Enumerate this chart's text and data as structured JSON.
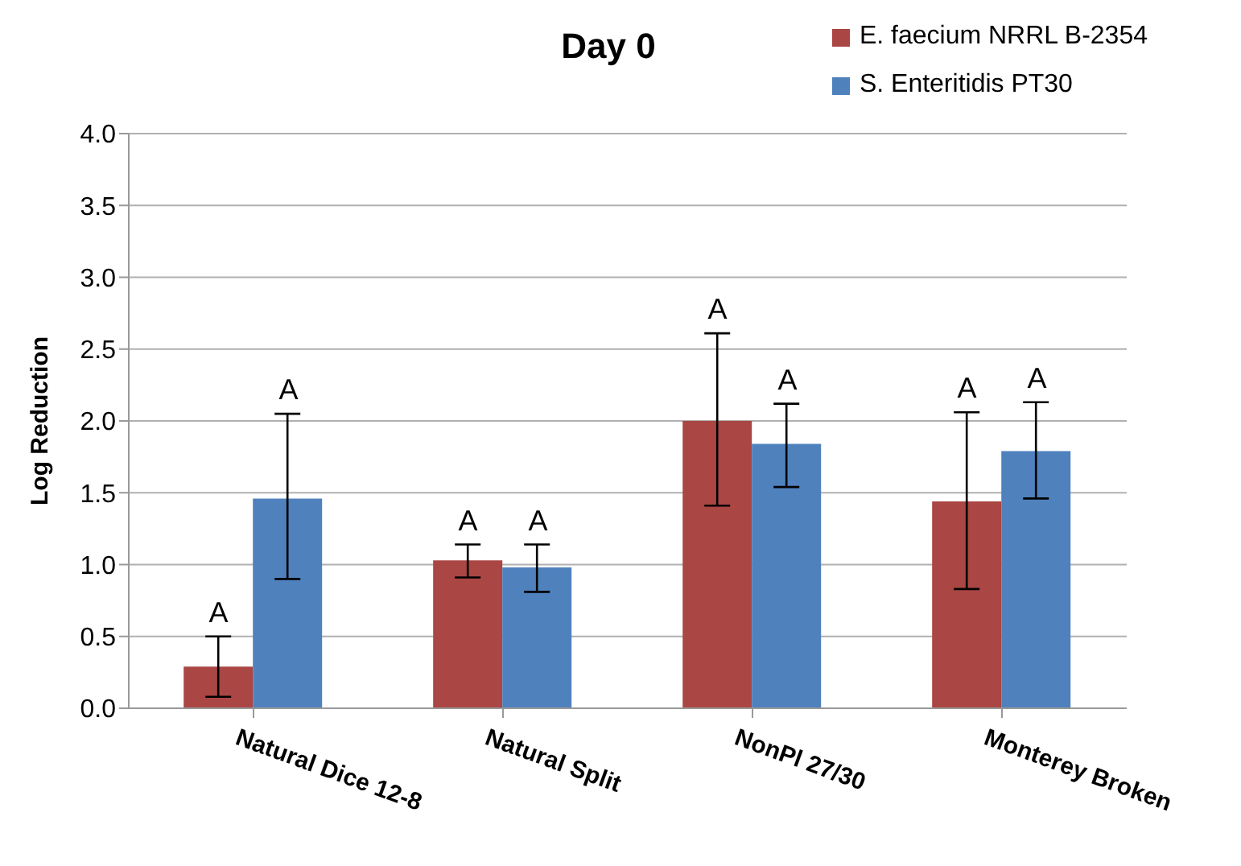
{
  "chart_data": {
    "type": "bar",
    "title": "Day 0",
    "ylabel": "Log Reduction",
    "categories": [
      "Natural Dice 12-8",
      "Natural Split",
      "NonPl 27/30",
      "Monterey Broken"
    ],
    "series": [
      {
        "name": "E. faecium NRRL B-2354",
        "color": "#aa4643",
        "values": [
          0.29,
          1.03,
          2.0,
          1.44
        ],
        "errors": [
          [
            0.08,
            0.5
          ],
          [
            0.91,
            1.14
          ],
          [
            1.41,
            2.61
          ],
          [
            0.83,
            2.06
          ]
        ]
      },
      {
        "name": "S. Enteritidis PT30",
        "color": "#4f81bd",
        "values": [
          1.46,
          0.98,
          1.84,
          1.79
        ],
        "errors": [
          [
            0.9,
            2.05
          ],
          [
            0.81,
            1.14
          ],
          [
            1.54,
            2.12
          ],
          [
            1.46,
            2.13
          ]
        ]
      }
    ],
    "annotations": [
      "A",
      "A",
      "A",
      "A",
      "A",
      "A",
      "A",
      "A"
    ],
    "ylim": [
      0,
      4
    ],
    "yticks": [
      {
        "value": 0,
        "label": "0.0"
      },
      0.5,
      {
        "value": 1,
        "label": "1.0"
      },
      1.5,
      {
        "value": 2,
        "label": "2.0"
      },
      2.5,
      {
        "value": 3,
        "label": "3.0"
      },
      3.5,
      {
        "value": 4,
        "label": "4.0"
      }
    ],
    "grid": "y",
    "legend": "top right"
  }
}
